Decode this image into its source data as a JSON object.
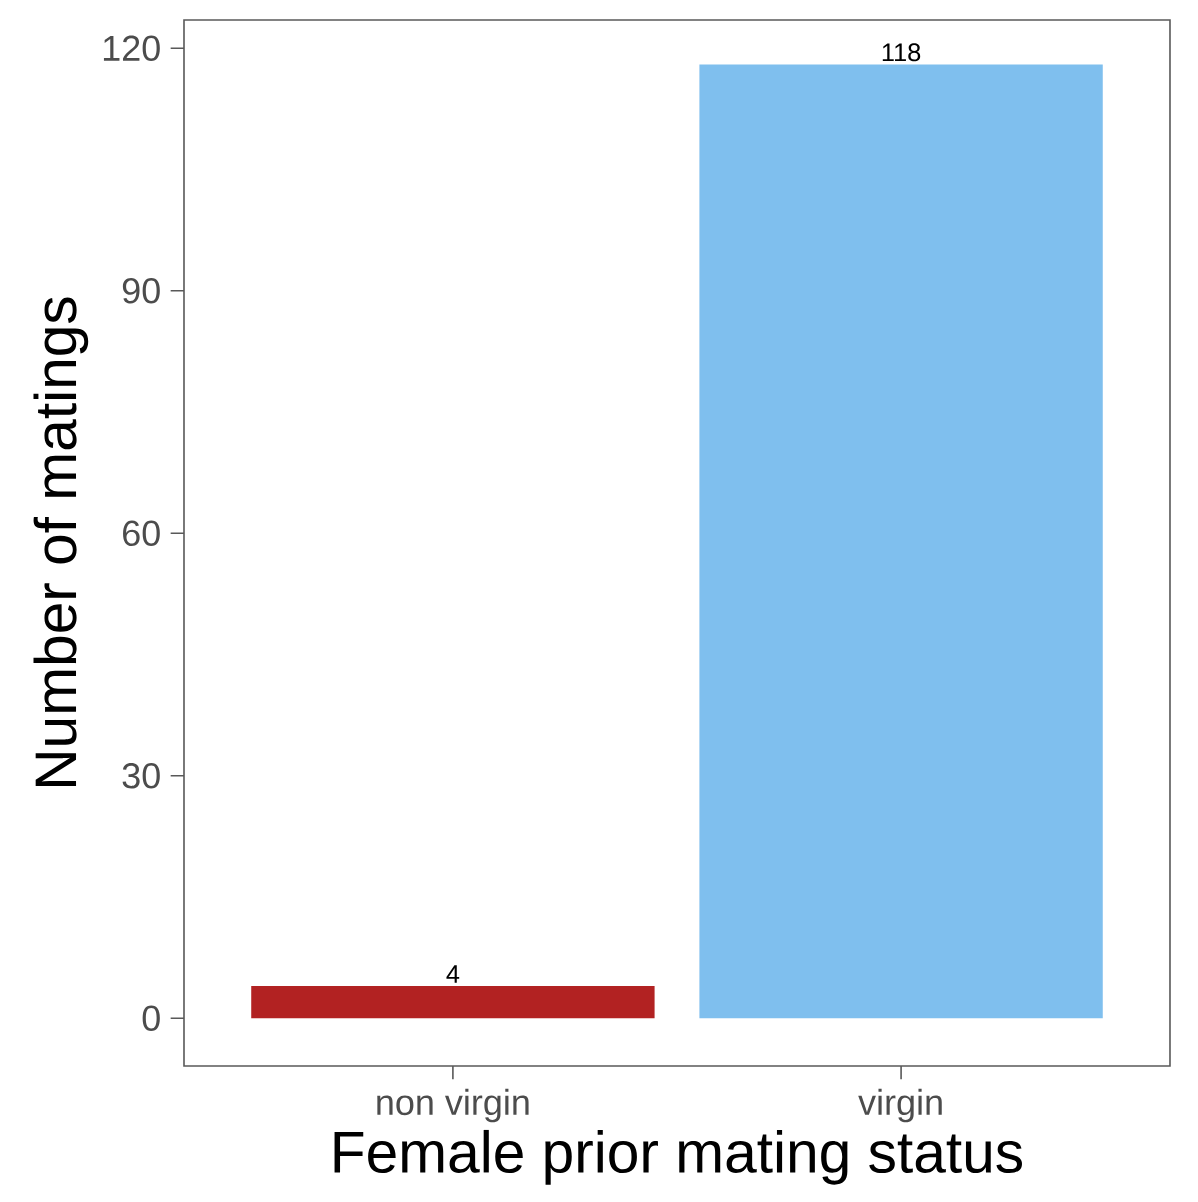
{
  "chart_data": {
    "type": "bar",
    "xlabel": "Female prior mating status",
    "ylabel": "Number of matings",
    "categories": [
      "non virgin",
      "virgin"
    ],
    "values": [
      4,
      118
    ],
    "colors": [
      "#b22222",
      "#7fbfee"
    ],
    "ylim": [
      -5.9,
      123.5
    ],
    "yticks": [
      0,
      30,
      60,
      90,
      120
    ],
    "data_labels": true
  }
}
